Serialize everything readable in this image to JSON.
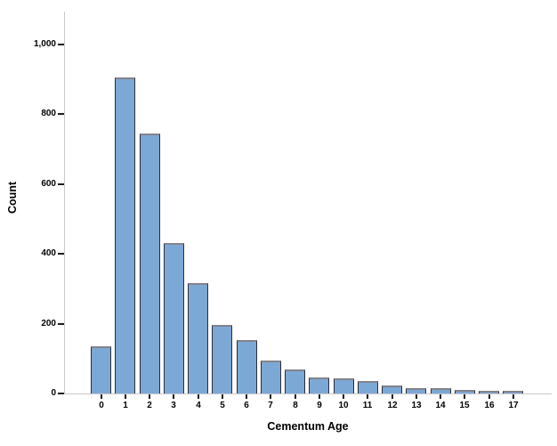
{
  "chart_data": {
    "type": "bar",
    "title": "",
    "xlabel": "Cementum Age",
    "ylabel": "Count",
    "categories": [
      "0",
      "1",
      "2",
      "3",
      "4",
      "5",
      "6",
      "7",
      "8",
      "9",
      "10",
      "11",
      "12",
      "13",
      "14",
      "15",
      "16",
      "17"
    ],
    "values": [
      130,
      900,
      740,
      425,
      310,
      192,
      148,
      90,
      65,
      42,
      38,
      30,
      17,
      9,
      11,
      5,
      3,
      3
    ],
    "ylim": [
      0,
      1094
    ],
    "yticks": [
      0,
      200,
      400,
      600,
      800,
      1000
    ],
    "ytick_labels": [
      "0",
      "200",
      "400",
      "600",
      "800",
      "1,000"
    ],
    "grid": false,
    "legend": "none",
    "colors": {
      "bar_fill": "#7CA8D6",
      "bar_border": "#2C2C34",
      "bar_border_top": "#83838B",
      "axis_line": "#C9C9C9",
      "tick_mark": "#1A1A1A",
      "text": "#000000",
      "background": "#FFFFFF"
    }
  }
}
